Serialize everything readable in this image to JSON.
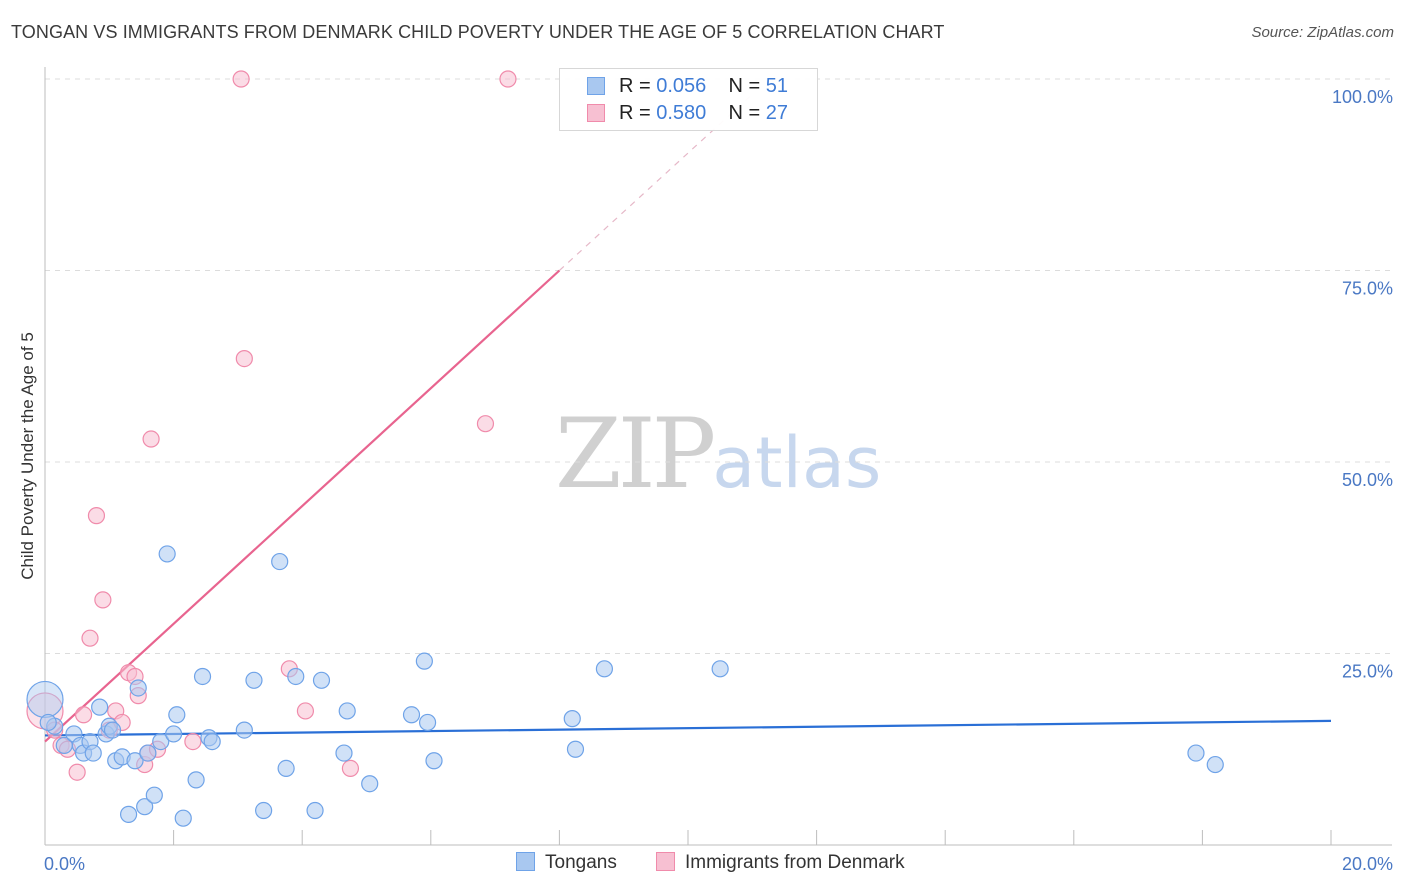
{
  "header": {
    "title": "TONGAN VS IMMIGRANTS FROM DENMARK CHILD POVERTY UNDER THE AGE OF 5 CORRELATION CHART",
    "source": "Source: ZipAtlas.com"
  },
  "watermark": {
    "zip": "ZIP",
    "atlas": "atlas"
  },
  "legend": {
    "rows": [
      {
        "r_label": "R =",
        "r_value": "0.056",
        "n_label": "N =",
        "n_value": "51",
        "color": "#6fa3e8"
      },
      {
        "r_label": "R =",
        "r_value": "0.580",
        "n_label": "N =",
        "n_value": "27",
        "color": "#f08bab"
      }
    ]
  },
  "bottom_legend": [
    "Tongans",
    "Immigrants from Denmark"
  ],
  "colors": {
    "blue_fill": "#a9c8f0",
    "blue_stroke": "#6fa3e8",
    "blue_line": "#2a6fd6",
    "pink_fill": "#f7c0d2",
    "pink_stroke": "#f08bab",
    "pink_line": "#e8648f",
    "grid": "#dcdcdc",
    "tick_text": "#4a78c4"
  },
  "chart_data": {
    "type": "scatter",
    "title": "TONGAN VS IMMIGRANTS FROM DENMARK CHILD POVERTY UNDER THE AGE OF 5 CORRELATION CHART",
    "xlabel": "",
    "ylabel": "Child Poverty Under the Age of 5",
    "xlim": [
      0,
      20
    ],
    "ylim": [
      0,
      100
    ],
    "x_tick_labels": [
      "0.0%",
      "20.0%"
    ],
    "y_ticks": [
      25,
      50,
      75,
      100
    ],
    "y_tick_labels": [
      "25.0%",
      "50.0%",
      "75.0%",
      "100.0%"
    ],
    "grid": true,
    "series": [
      {
        "name": "Tongans",
        "r": 0.056,
        "n": 51,
        "trend": {
          "x": [
            0,
            20
          ],
          "y": [
            14.3,
            16.2
          ],
          "dashed_to": null
        },
        "points": [
          {
            "x": 0.0,
            "y": 19.0,
            "big": true
          },
          {
            "x": 0.15,
            "y": 15.5
          },
          {
            "x": 0.3,
            "y": 13.0
          },
          {
            "x": 0.45,
            "y": 14.5
          },
          {
            "x": 0.55,
            "y": 13.0
          },
          {
            "x": 0.6,
            "y": 12.0
          },
          {
            "x": 0.7,
            "y": 13.5
          },
          {
            "x": 0.75,
            "y": 12.0
          },
          {
            "x": 0.85,
            "y": 18.0
          },
          {
            "x": 0.95,
            "y": 14.5
          },
          {
            "x": 1.0,
            "y": 15.5
          },
          {
            "x": 1.1,
            "y": 11.0
          },
          {
            "x": 1.2,
            "y": 11.5
          },
          {
            "x": 1.3,
            "y": 4.0
          },
          {
            "x": 1.4,
            "y": 11.0
          },
          {
            "x": 1.45,
            "y": 20.5
          },
          {
            "x": 1.55,
            "y": 5.0
          },
          {
            "x": 1.6,
            "y": 12.0
          },
          {
            "x": 1.7,
            "y": 6.5
          },
          {
            "x": 1.8,
            "y": 13.5
          },
          {
            "x": 1.9,
            "y": 38.0
          },
          {
            "x": 2.0,
            "y": 14.5
          },
          {
            "x": 2.05,
            "y": 17.0
          },
          {
            "x": 2.15,
            "y": 3.5
          },
          {
            "x": 2.35,
            "y": 8.5
          },
          {
            "x": 2.45,
            "y": 22.0
          },
          {
            "x": 2.55,
            "y": 14.0
          },
          {
            "x": 2.6,
            "y": 13.5
          },
          {
            "x": 3.1,
            "y": 15.0
          },
          {
            "x": 3.25,
            "y": 21.5
          },
          {
            "x": 3.4,
            "y": 4.5
          },
          {
            "x": 3.65,
            "y": 37.0
          },
          {
            "x": 3.75,
            "y": 10.0
          },
          {
            "x": 3.9,
            "y": 22.0
          },
          {
            "x": 4.2,
            "y": 4.5
          },
          {
            "x": 4.3,
            "y": 21.5
          },
          {
            "x": 4.65,
            "y": 12.0
          },
          {
            "x": 4.7,
            "y": 17.5
          },
          {
            "x": 5.05,
            "y": 8.0
          },
          {
            "x": 5.7,
            "y": 17.0
          },
          {
            "x": 5.9,
            "y": 24.0
          },
          {
            "x": 5.95,
            "y": 16.0
          },
          {
            "x": 6.05,
            "y": 11.0
          },
          {
            "x": 8.2,
            "y": 16.5
          },
          {
            "x": 8.25,
            "y": 12.5
          },
          {
            "x": 8.7,
            "y": 23.0
          },
          {
            "x": 10.5,
            "y": 23.0
          },
          {
            "x": 17.9,
            "y": 12.0
          },
          {
            "x": 18.2,
            "y": 10.5
          },
          {
            "x": 0.05,
            "y": 16.0
          },
          {
            "x": 1.05,
            "y": 15.0
          }
        ]
      },
      {
        "name": "Immigrants from Denmark",
        "r": 0.58,
        "n": 27,
        "trend": {
          "x": [
            0,
            8.0
          ],
          "y": [
            13.5,
            75.0
          ],
          "dashed_to": [
            11.0,
            98.0
          ]
        },
        "points": [
          {
            "x": 0.0,
            "y": 17.5,
            "big": true
          },
          {
            "x": 0.15,
            "y": 15.0
          },
          {
            "x": 0.25,
            "y": 13.0
          },
          {
            "x": 0.35,
            "y": 12.5
          },
          {
            "x": 0.5,
            "y": 9.5
          },
          {
            "x": 0.6,
            "y": 17.0
          },
          {
            "x": 0.7,
            "y": 27.0
          },
          {
            "x": 0.8,
            "y": 43.0
          },
          {
            "x": 0.9,
            "y": 32.0
          },
          {
            "x": 1.0,
            "y": 15.0
          },
          {
            "x": 1.1,
            "y": 17.5
          },
          {
            "x": 1.2,
            "y": 16.0
          },
          {
            "x": 1.3,
            "y": 22.5
          },
          {
            "x": 1.4,
            "y": 22.0
          },
          {
            "x": 1.45,
            "y": 19.5
          },
          {
            "x": 1.55,
            "y": 10.5
          },
          {
            "x": 1.6,
            "y": 12.0
          },
          {
            "x": 1.65,
            "y": 53.0
          },
          {
            "x": 1.75,
            "y": 12.5
          },
          {
            "x": 2.3,
            "y": 13.5
          },
          {
            "x": 3.05,
            "y": 100.0
          },
          {
            "x": 3.1,
            "y": 63.5
          },
          {
            "x": 3.8,
            "y": 23.0
          },
          {
            "x": 4.05,
            "y": 17.5
          },
          {
            "x": 4.75,
            "y": 10.0
          },
          {
            "x": 6.85,
            "y": 55.0
          },
          {
            "x": 7.2,
            "y": 100.0
          }
        ]
      }
    ]
  }
}
